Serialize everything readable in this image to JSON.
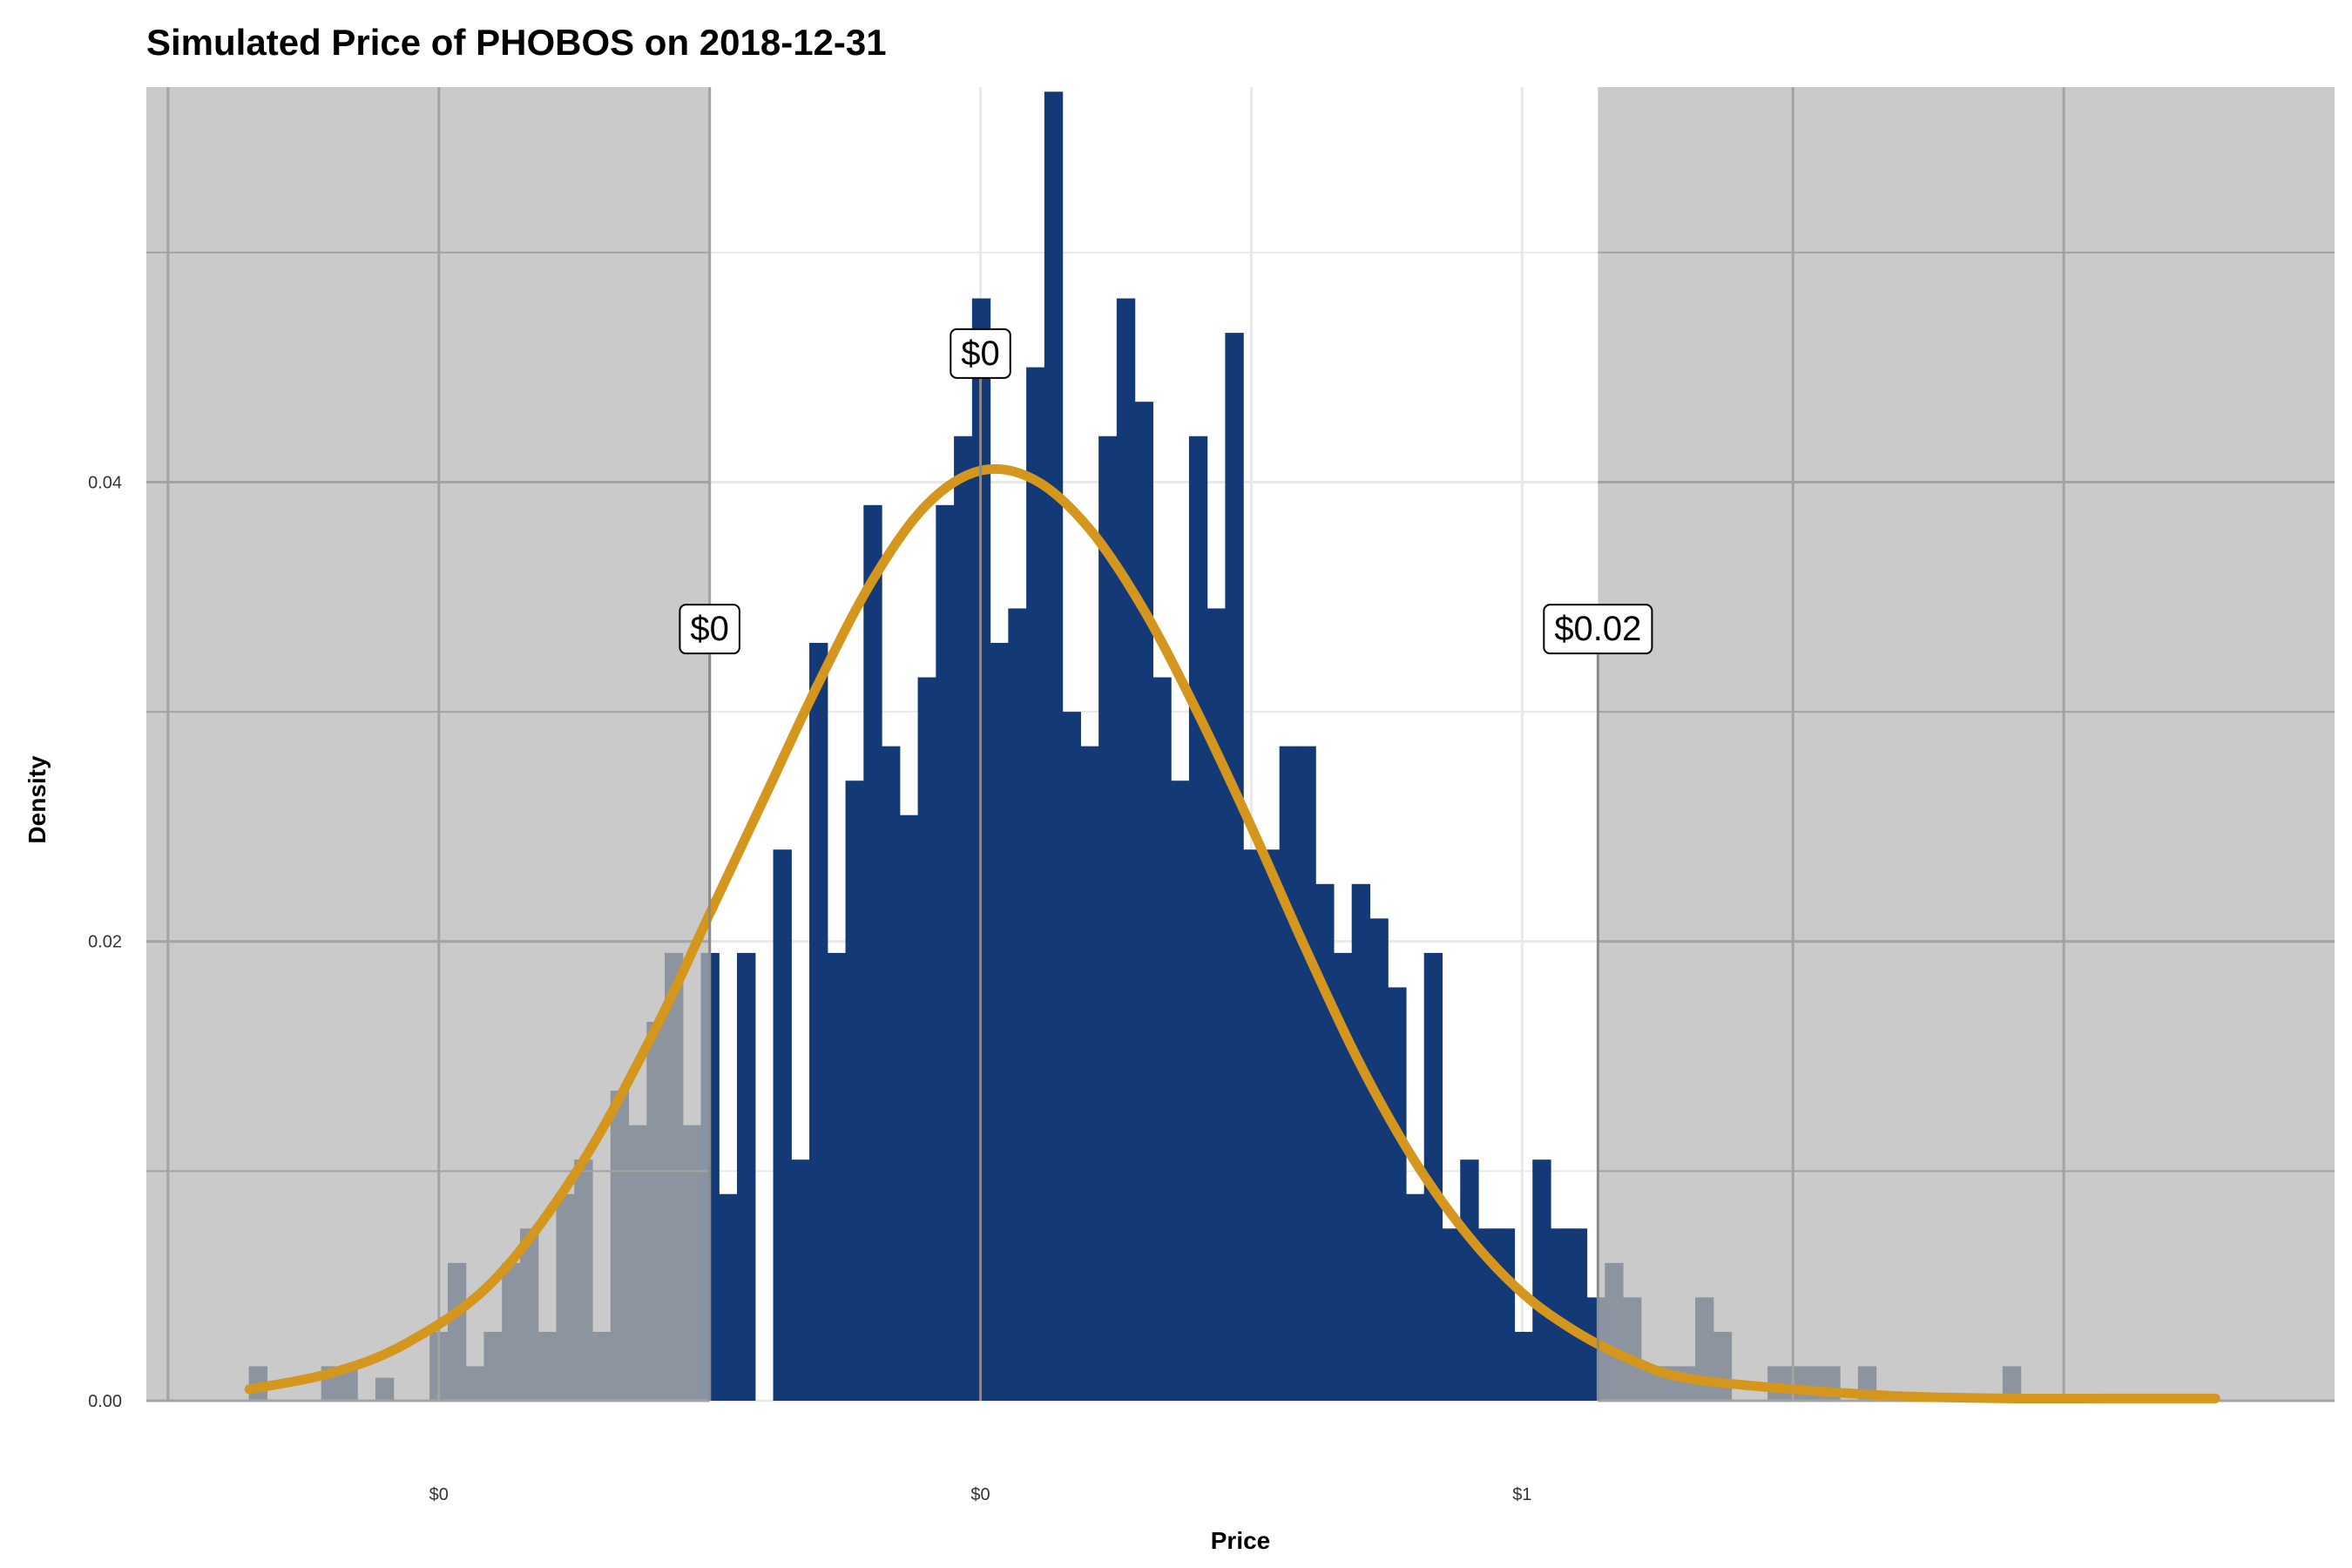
{
  "chart_data": {
    "type": "bar",
    "title": "Simulated Price of PHOBOS on 2018-12-31",
    "xlabel": "Price",
    "ylabel": "Density",
    "xlim": [
      -0.52,
      1.5
    ],
    "ylim": [
      0,
      0.0572
    ],
    "x_ticks": [
      {
        "value": -0.5,
        "label": ""
      },
      {
        "value": -0.25,
        "label": "$0"
      },
      {
        "value": 0.0,
        "label": ""
      },
      {
        "value": 0.25,
        "label": "$0"
      },
      {
        "value": 0.5,
        "label": ""
      },
      {
        "value": 0.75,
        "label": "$1"
      },
      {
        "value": 1.0,
        "label": ""
      },
      {
        "value": 1.25,
        "label": ""
      }
    ],
    "y_ticks": [
      {
        "value": 0.0,
        "label": "0.00"
      },
      {
        "value": 0.02,
        "label": "0.02"
      },
      {
        "value": 0.04,
        "label": "0.04"
      }
    ],
    "y_minor_gridlines": [
      0.01,
      0.03,
      0.05
    ],
    "grid": true,
    "bin_start": -0.4254,
    "bin_width": 0.01669,
    "bar_values": [
      0.0015,
      0,
      0,
      0,
      0.0015,
      0.0015,
      0,
      0.001,
      0,
      0,
      0.003,
      0.006,
      0.0015,
      0.003,
      0.006,
      0.0075,
      0.003,
      0.009,
      0.0105,
      0.003,
      0.0135,
      0.012,
      0.0165,
      0.0195,
      0.012,
      0.0195,
      0.009,
      0.0195,
      0,
      0.024,
      0.0105,
      0.033,
      0.0195,
      0.027,
      0.039,
      0.0285,
      0.0255,
      0.0315,
      0.039,
      0.042,
      0.048,
      0.033,
      0.0345,
      0.045,
      0.057,
      0.03,
      0.0285,
      0.042,
      0.048,
      0.0435,
      0.0315,
      0.027,
      0.042,
      0.0345,
      0.0465,
      0.024,
      0.024,
      0.0285,
      0.0285,
      0.0225,
      0.0195,
      0.0225,
      0.021,
      0.018,
      0.009,
      0.0195,
      0.0075,
      0.0105,
      0.0075,
      0.0075,
      0.003,
      0.0105,
      0.0075,
      0.0075,
      0.0045,
      0.006,
      0.0045,
      0.0015,
      0.0015,
      0.0015,
      0.0045,
      0.003,
      0,
      0,
      0.0015,
      0.0015,
      0.0015,
      0.0015,
      0,
      0.0015,
      0,
      0,
      0,
      0,
      0,
      0,
      0,
      0.0015
    ],
    "density_curve": {
      "x": [
        -0.425,
        -0.35,
        -0.28,
        -0.2,
        -0.12,
        -0.05,
        0.0,
        0.05,
        0.1,
        0.15,
        0.2,
        0.25,
        0.3,
        0.35,
        0.4,
        0.45,
        0.5,
        0.55,
        0.6,
        0.65,
        0.7,
        0.75,
        0.8,
        0.85,
        0.9,
        1.0,
        1.1,
        1.2,
        1.3,
        1.39
      ],
      "y": [
        0.0005,
        0.0012,
        0.0025,
        0.0052,
        0.0102,
        0.0162,
        0.0212,
        0.0262,
        0.0312,
        0.0357,
        0.039,
        0.0405,
        0.0401,
        0.038,
        0.0345,
        0.03,
        0.025,
        0.0197,
        0.0147,
        0.0105,
        0.0072,
        0.0047,
        0.003,
        0.0018,
        0.001,
        0.0005,
        0.0002,
        0.0001,
        0.0001,
        0.0001
      ]
    },
    "shaded_regions": [
      {
        "from": -0.52,
        "to": 0.0
      },
      {
        "from": 0.82,
        "to": 1.5
      }
    ],
    "annotations": [
      {
        "x": 0.0,
        "label_y": 0.0325,
        "label": "$0"
      },
      {
        "x": 0.25,
        "label_y": 0.0445,
        "label": "$0"
      },
      {
        "x": 0.82,
        "label_y": 0.0325,
        "label": "$0.02"
      }
    ],
    "colors": {
      "bar": "#133a76",
      "bar_shaded": "#233e66",
      "curve": "#d4961c",
      "shade": "#b5b5b5",
      "grid": "#e9e9e9",
      "grid_shaded": "#a3a3a3",
      "vline": "#8a8a8a"
    }
  }
}
